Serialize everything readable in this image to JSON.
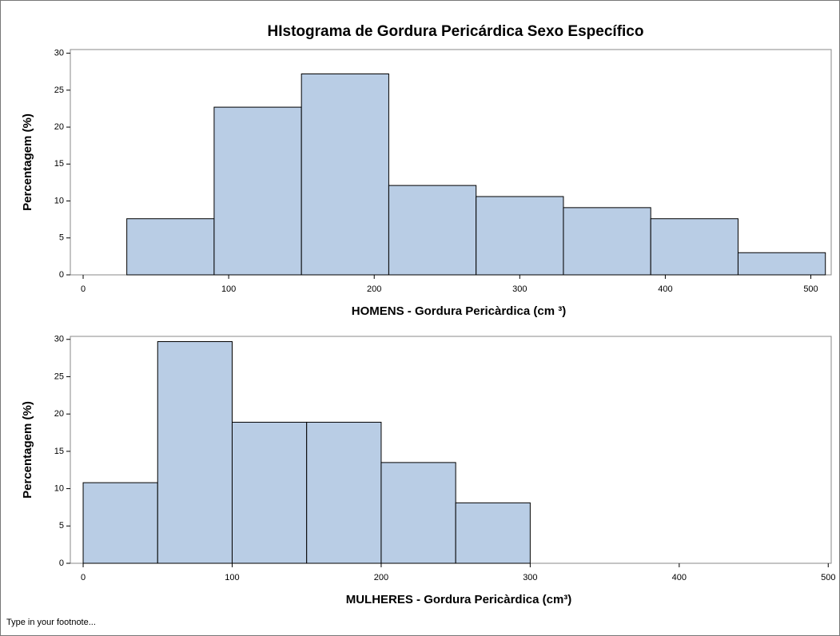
{
  "title": "HIstograma de Gordura Pericárdica Sexo Específico",
  "footnote": "Type in your footnote...",
  "chart_data": [
    {
      "type": "histogram",
      "xlabel": "HOMENS - Gordura Pericàrdica (cm ³)",
      "ylabel": "Percentagem (%)",
      "bins": [
        30,
        90,
        150,
        210,
        270,
        330,
        390,
        450,
        510
      ],
      "values": [
        7.6,
        22.7,
        27.2,
        12.1,
        10.6,
        9.1,
        7.6,
        3.0
      ],
      "color": "#b9cde5",
      "xlim": [
        -8.8,
        514
      ],
      "xticks": [
        0,
        100,
        200,
        300,
        400,
        500
      ],
      "ylim": [
        0,
        30.5
      ],
      "yticks": [
        0,
        5,
        10,
        15,
        20,
        25,
        30
      ]
    },
    {
      "type": "histogram",
      "xlabel": "MULHERES - Gordura Pericàrdica (cm³)",
      "ylabel": "Percentagem (%)",
      "bins": [
        0,
        50,
        100,
        150,
        200,
        250,
        300
      ],
      "values": [
        10.8,
        29.7,
        18.9,
        18.9,
        13.5,
        8.1
      ],
      "color": "#b9cde5",
      "xlim": [
        -8.6,
        502
      ],
      "xticks": [
        0,
        100,
        200,
        300,
        400,
        500
      ],
      "ylim": [
        0,
        30.4
      ],
      "yticks": [
        0,
        5,
        10,
        15,
        20,
        25,
        30
      ]
    }
  ]
}
